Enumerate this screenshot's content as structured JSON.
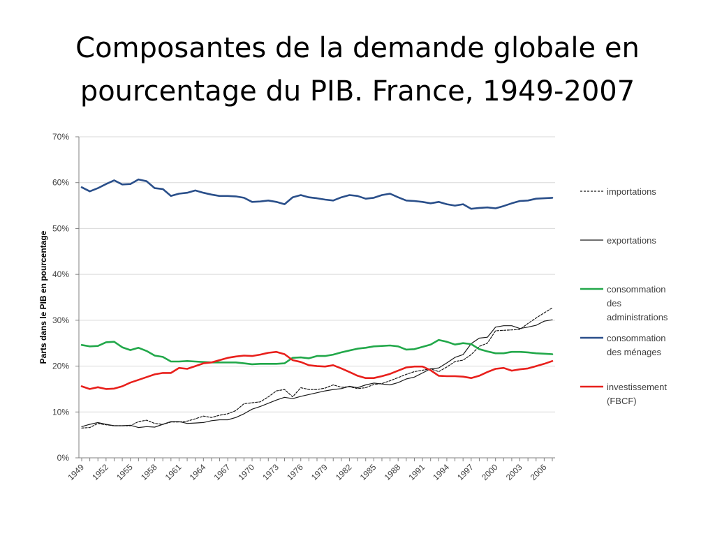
{
  "slide": {
    "title_line1": "Composantes de la demande globale en",
    "title_line2": "pourcentage du PIB. France, 1949-2007"
  },
  "chart_data": {
    "type": "line",
    "title": "",
    "xlabel": "",
    "ylabel": "Parts dans le PIB en pourcentage",
    "ylim": [
      0,
      70
    ],
    "yticks": [
      "0%",
      "10%",
      "20%",
      "30%",
      "40%",
      "50%",
      "60%",
      "70%"
    ],
    "xlim": [
      1949,
      2007
    ],
    "xticks": [
      "1949",
      "1952",
      "1955",
      "1958",
      "1961",
      "1964",
      "1967",
      "1970",
      "1973",
      "1976",
      "1979",
      "1982",
      "1985",
      "1988",
      "1991",
      "1994",
      "1997",
      "2000",
      "2003",
      "2006"
    ],
    "grid": "horizontal",
    "legend_position": "right",
    "x": [
      1949,
      1950,
      1951,
      1952,
      1953,
      1954,
      1955,
      1956,
      1957,
      1958,
      1959,
      1960,
      1961,
      1962,
      1963,
      1964,
      1965,
      1966,
      1967,
      1968,
      1969,
      1970,
      1971,
      1972,
      1973,
      1974,
      1975,
      1976,
      1977,
      1978,
      1979,
      1980,
      1981,
      1982,
      1983,
      1984,
      1985,
      1986,
      1987,
      1988,
      1989,
      1990,
      1991,
      1992,
      1993,
      1994,
      1995,
      1996,
      1997,
      1998,
      1999,
      2000,
      2001,
      2002,
      2003,
      2004,
      2005,
      2006,
      2007
    ],
    "series": [
      {
        "name": "importations",
        "color": "#1a1a1a",
        "dash": "dashed",
        "width": 1.2,
        "values": [
          6.5,
          6.6,
          7.5,
          7.2,
          7.0,
          7.0,
          7.0,
          7.9,
          8.2,
          7.5,
          7.3,
          7.8,
          7.8,
          8.0,
          8.5,
          9.1,
          8.8,
          9.3,
          9.6,
          10.3,
          11.8,
          12.0,
          12.2,
          13.3,
          14.6,
          14.9,
          13.3,
          15.3,
          14.9,
          14.9,
          15.2,
          15.9,
          15.4,
          15.5,
          15.1,
          15.3,
          16.0,
          16.2,
          16.8,
          17.5,
          18.2,
          18.8,
          19.1,
          19.4,
          18.8,
          19.8,
          21.0,
          21.3,
          22.5,
          24.3,
          25.0,
          27.7,
          27.8,
          27.9,
          28.0,
          29.3,
          30.5,
          31.6,
          32.7
        ]
      },
      {
        "name": "exportations",
        "color": "#1a1a1a",
        "dash": "solid",
        "width": 1.2,
        "values": [
          6.8,
          7.3,
          7.7,
          7.3,
          7.0,
          7.0,
          7.1,
          6.6,
          6.8,
          6.7,
          7.3,
          7.9,
          7.9,
          7.5,
          7.6,
          7.7,
          8.1,
          8.3,
          8.3,
          8.8,
          9.6,
          10.6,
          11.2,
          11.9,
          12.6,
          13.2,
          12.9,
          13.4,
          13.8,
          14.2,
          14.6,
          14.9,
          15.1,
          15.6,
          15.3,
          15.9,
          16.3,
          16.1,
          15.9,
          16.4,
          17.2,
          17.6,
          18.5,
          19.4,
          19.6,
          20.7,
          21.9,
          22.5,
          24.9,
          26.1,
          26.3,
          28.5,
          28.8,
          28.8,
          28.2,
          28.5,
          28.9,
          29.8,
          30.1
        ]
      },
      {
        "name": "consommation des administrations",
        "color": "#22a84a",
        "dash": "solid",
        "width": 2.6,
        "values": [
          24.6,
          24.3,
          24.4,
          25.2,
          25.3,
          24.1,
          23.5,
          24.0,
          23.3,
          22.3,
          22.0,
          21.0,
          21.0,
          21.1,
          21.0,
          20.9,
          20.8,
          20.8,
          20.8,
          20.8,
          20.6,
          20.4,
          20.5,
          20.5,
          20.5,
          20.6,
          21.8,
          21.9,
          21.7,
          22.2,
          22.2,
          22.5,
          23.0,
          23.4,
          23.8,
          24.0,
          24.3,
          24.4,
          24.5,
          24.3,
          23.6,
          23.7,
          24.2,
          24.7,
          25.7,
          25.3,
          24.7,
          25.0,
          24.8,
          23.7,
          23.2,
          22.8,
          22.8,
          23.1,
          23.1,
          23.0,
          22.8,
          22.7,
          22.6
        ]
      },
      {
        "name": "consommation des ménages",
        "color": "#2a4f8a",
        "dash": "solid",
        "width": 2.6,
        "values": [
          59.0,
          58.1,
          58.8,
          59.7,
          60.5,
          59.6,
          59.7,
          60.7,
          60.3,
          58.8,
          58.6,
          57.1,
          57.6,
          57.8,
          58.3,
          57.8,
          57.4,
          57.1,
          57.1,
          57.0,
          56.7,
          55.8,
          55.9,
          56.1,
          55.8,
          55.3,
          56.8,
          57.3,
          56.8,
          56.6,
          56.3,
          56.1,
          56.8,
          57.3,
          57.1,
          56.5,
          56.7,
          57.3,
          57.6,
          56.8,
          56.1,
          56.0,
          55.8,
          55.5,
          55.8,
          55.3,
          55.0,
          55.3,
          54.3,
          54.5,
          54.6,
          54.4,
          54.9,
          55.5,
          56.0,
          56.1,
          56.5,
          56.6,
          56.7
        ]
      },
      {
        "name": "investissement (FBCF)",
        "color": "#e8201c",
        "dash": "solid",
        "width": 2.6,
        "values": [
          15.6,
          15.0,
          15.4,
          15.0,
          15.1,
          15.6,
          16.4,
          17.0,
          17.6,
          18.2,
          18.5,
          18.5,
          19.6,
          19.4,
          20.0,
          20.6,
          20.8,
          21.3,
          21.8,
          22.1,
          22.3,
          22.2,
          22.5,
          22.9,
          23.1,
          22.6,
          21.3,
          20.9,
          20.2,
          20.0,
          19.9,
          20.2,
          19.5,
          18.7,
          17.9,
          17.4,
          17.4,
          17.8,
          18.3,
          19.0,
          19.7,
          19.9,
          19.9,
          19.1,
          17.9,
          17.8,
          17.8,
          17.7,
          17.4,
          17.9,
          18.7,
          19.4,
          19.6,
          19.0,
          19.3,
          19.5,
          20.0,
          20.5,
          21.1
        ]
      }
    ]
  },
  "legend": [
    {
      "lines": [
        "importations"
      ]
    },
    {
      "lines": [
        "exportations"
      ]
    },
    {
      "lines": [
        "consommation",
        "des",
        "administrations"
      ]
    },
    {
      "lines": [
        "consommation",
        "des ménages"
      ]
    },
    {
      "lines": [
        "investissement",
        "(FBCF)"
      ]
    }
  ]
}
